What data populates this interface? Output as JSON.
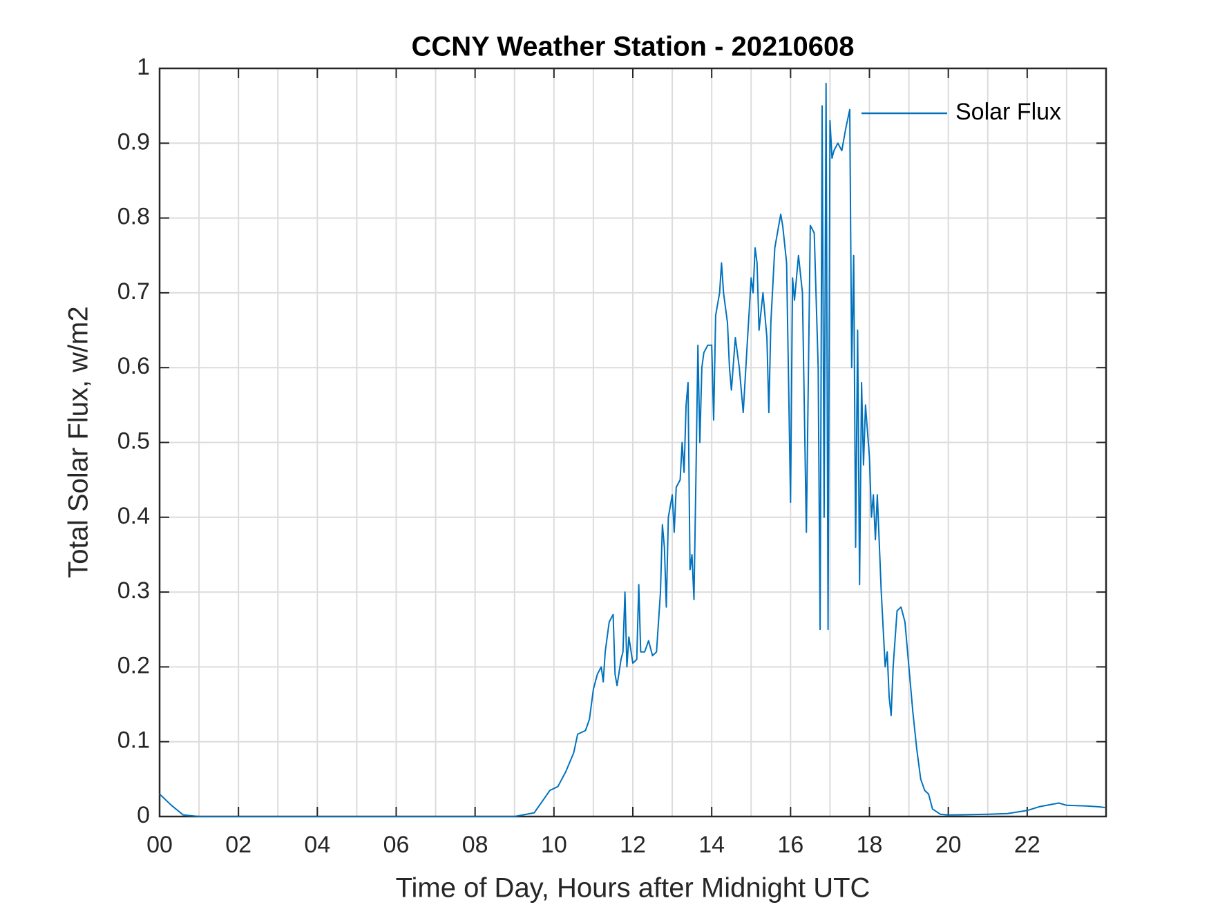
{
  "chart_data": {
    "type": "line",
    "title": "CCNY Weather Station - 20210608",
    "xlabel": "Time of Day, Hours after Midnight UTC",
    "ylabel": "Total Solar Flux, w/m2",
    "xlim": [
      0,
      24
    ],
    "ylim": [
      0,
      1
    ],
    "xticks": [
      {
        "value": 0,
        "label": "00"
      },
      {
        "value": 2,
        "label": "02"
      },
      {
        "value": 4,
        "label": "04"
      },
      {
        "value": 6,
        "label": "06"
      },
      {
        "value": 8,
        "label": "08"
      },
      10,
      12,
      14,
      16,
      18,
      20,
      22
    ],
    "xminorticks": [
      1,
      3,
      5,
      7,
      9,
      11,
      13,
      15,
      17,
      19,
      21,
      23
    ],
    "yticks": [
      0,
      0.1,
      0.2,
      0.3,
      0.4,
      0.5,
      0.6,
      0.7,
      0.8,
      0.9,
      1
    ],
    "grid": true,
    "legend": "northeast",
    "x": [
      0,
      0.3,
      0.6,
      1,
      9,
      9.5,
      9.7,
      9.9,
      10.1,
      10.3,
      10.5,
      10.6,
      10.8,
      10.9,
      11.0,
      11.1,
      11.2,
      11.25,
      11.3,
      11.4,
      11.5,
      11.55,
      11.6,
      11.7,
      11.75,
      11.8,
      11.85,
      11.9,
      12.0,
      12.1,
      12.15,
      12.2,
      12.3,
      12.4,
      12.5,
      12.6,
      12.7,
      12.75,
      12.8,
      12.85,
      12.9,
      13.0,
      13.05,
      13.1,
      13.2,
      13.25,
      13.3,
      13.35,
      13.4,
      13.45,
      13.5,
      13.55,
      13.6,
      13.65,
      13.7,
      13.75,
      13.8,
      13.9,
      14.0,
      14.05,
      14.1,
      14.2,
      14.25,
      14.3,
      14.4,
      14.45,
      14.5,
      14.6,
      14.7,
      14.8,
      14.9,
      15.0,
      15.05,
      15.1,
      15.15,
      15.2,
      15.3,
      15.4,
      15.45,
      15.5,
      15.6,
      15.7,
      15.75,
      15.8,
      15.9,
      16.0,
      16.05,
      16.1,
      16.2,
      16.3,
      16.4,
      16.5,
      16.6,
      16.7,
      16.75,
      16.8,
      16.85,
      16.9,
      16.95,
      17.0,
      17.05,
      17.1,
      17.2,
      17.3,
      17.4,
      17.5,
      17.55,
      17.6,
      17.65,
      17.7,
      17.75,
      17.8,
      17.85,
      17.9,
      18.0,
      18.05,
      18.1,
      18.15,
      18.2,
      18.3,
      18.4,
      18.45,
      18.5,
      18.55,
      18.6,
      18.7,
      18.8,
      18.9,
      19.0,
      19.1,
      19.2,
      19.3,
      19.4,
      19.5,
      19.6,
      19.8,
      20,
      21,
      21.5,
      22,
      22.3,
      22.8,
      23.0,
      23.5,
      23.8,
      23.97
    ],
    "series": [
      {
        "name": "Solar Flux",
        "color": "#0072bd",
        "values": [
          0.03,
          0.015,
          0.002,
          0,
          0,
          0.005,
          0.02,
          0.035,
          0.04,
          0.06,
          0.085,
          0.11,
          0.115,
          0.13,
          0.17,
          0.19,
          0.2,
          0.18,
          0.22,
          0.26,
          0.27,
          0.19,
          0.175,
          0.21,
          0.22,
          0.3,
          0.2,
          0.24,
          0.205,
          0.21,
          0.31,
          0.22,
          0.22,
          0.235,
          0.215,
          0.22,
          0.3,
          0.39,
          0.36,
          0.28,
          0.4,
          0.43,
          0.38,
          0.44,
          0.45,
          0.5,
          0.46,
          0.55,
          0.58,
          0.33,
          0.35,
          0.29,
          0.45,
          0.63,
          0.5,
          0.6,
          0.62,
          0.63,
          0.63,
          0.53,
          0.67,
          0.7,
          0.74,
          0.7,
          0.66,
          0.6,
          0.57,
          0.64,
          0.6,
          0.54,
          0.63,
          0.72,
          0.7,
          0.76,
          0.74,
          0.65,
          0.7,
          0.64,
          0.54,
          0.66,
          0.76,
          0.79,
          0.805,
          0.79,
          0.74,
          0.42,
          0.72,
          0.69,
          0.75,
          0.7,
          0.38,
          0.79,
          0.78,
          0.6,
          0.25,
          0.95,
          0.4,
          0.98,
          0.25,
          0.93,
          0.88,
          0.89,
          0.9,
          0.89,
          0.92,
          0.945,
          0.6,
          0.75,
          0.36,
          0.65,
          0.31,
          0.58,
          0.47,
          0.55,
          0.48,
          0.4,
          0.43,
          0.37,
          0.43,
          0.3,
          0.2,
          0.22,
          0.16,
          0.135,
          0.2,
          0.275,
          0.28,
          0.26,
          0.2,
          0.14,
          0.09,
          0.05,
          0.035,
          0.03,
          0.01,
          0.003,
          0.002,
          0.003,
          0.004,
          0.008,
          0.013,
          0.018,
          0.015,
          0.014,
          0.013,
          0.012
        ]
      }
    ]
  }
}
